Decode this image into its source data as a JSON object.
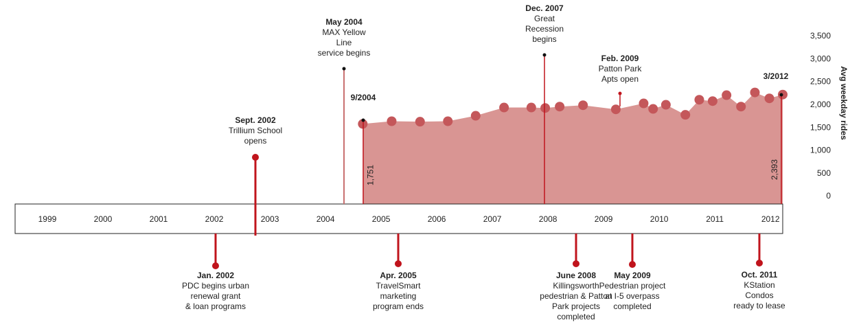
{
  "chart_data": {
    "type": "area",
    "y_label": "Avg weekday rides",
    "color": "#d99593",
    "point_color": "#c4575a",
    "xlim": [
      1998.42,
      2012.22
    ],
    "xticks": [
      1999,
      2000,
      2001,
      2002,
      2003,
      2004,
      2005,
      2006,
      2007,
      2008,
      2009,
      2010,
      2011,
      2012
    ],
    "ylim": [
      0,
      3500
    ],
    "yticks": [
      0,
      {
        "value": 500,
        "label": "500"
      },
      {
        "value": 1000,
        "label": "1,000"
      },
      {
        "value": 1500,
        "label": "1,500"
      },
      {
        "value": 2000,
        "label": "2,000"
      },
      {
        "value": 2500,
        "label": "2,500"
      },
      {
        "value": 3000,
        "label": "3,000"
      },
      {
        "value": 3500,
        "label": "3,500"
      }
    ],
    "x": [
      2004.67,
      2005.19,
      2005.7,
      2006.2,
      2006.7,
      2007.21,
      2007.7,
      2007.95,
      2008.21,
      2008.63,
      2009.22,
      2009.72,
      2009.89,
      2010.12,
      2010.47,
      2010.72,
      2010.96,
      2011.21,
      2011.47,
      2011.72,
      2011.98,
      2012.22
    ],
    "values": [
      1751,
      1810,
      1800,
      1810,
      1930,
      2110,
      2110,
      2100,
      2130,
      2160,
      2070,
      2200,
      2080,
      2170,
      1950,
      2280,
      2250,
      2380,
      2130,
      2440,
      2310,
      2393
    ],
    "value_labels": [
      "1,751",
      null,
      null,
      null,
      null,
      null,
      null,
      null,
      null,
      null,
      null,
      null,
      null,
      null,
      null,
      null,
      null,
      null,
      null,
      null,
      null,
      "2,393"
    ]
  },
  "events": [
    {
      "date": "Sept. 2002",
      "lines": [
        "Trillium School",
        "opens"
      ]
    },
    {
      "date": "May 2004",
      "lines": [
        "MAX Yellow",
        "Line",
        "service begins"
      ]
    },
    {
      "date": "9/2004",
      "lines": []
    },
    {
      "date": "Dec. 2007",
      "lines": [
        "Great",
        "Recession",
        "begins"
      ]
    },
    {
      "date": "Feb. 2009",
      "lines": [
        "Patton Park",
        "Apts open"
      ]
    },
    {
      "date": "3/2012",
      "lines": []
    },
    {
      "date": "Jan. 2002",
      "lines": [
        "PDC begins urban",
        "renewal grant",
        "& loan programs"
      ]
    },
    {
      "date": "Apr. 2005",
      "lines": [
        "TravelSmart",
        "marketing",
        "program ends"
      ]
    },
    {
      "date": "June 2008",
      "lines": [
        "Killingsworth",
        "pedestrian & Patton",
        "Park projects",
        "completed"
      ]
    },
    {
      "date": "May 2009",
      "lines": [
        "Pedestrian project",
        "at I-5 overpass",
        "completed"
      ]
    },
    {
      "date": "Oct. 2011",
      "lines": [
        "KStation",
        "Condos",
        "ready to lease"
      ]
    }
  ]
}
